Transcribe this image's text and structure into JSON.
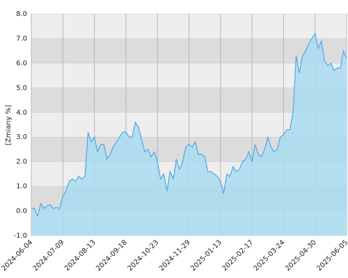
{
  "chart_data": {
    "type": "area",
    "y_label": "[Zmiany %]",
    "categories": [
      "2024-06-04",
      null,
      null,
      null,
      null,
      null,
      null,
      null,
      null,
      null,
      "2024-07-09",
      null,
      null,
      null,
      null,
      null,
      null,
      null,
      null,
      null,
      "2024-08-13",
      null,
      null,
      null,
      null,
      null,
      null,
      null,
      null,
      null,
      "2024-09-18",
      null,
      null,
      null,
      null,
      null,
      null,
      null,
      null,
      null,
      "2024-10-23",
      null,
      null,
      null,
      null,
      null,
      null,
      null,
      null,
      null,
      "2024-11-29",
      null,
      null,
      null,
      null,
      null,
      null,
      null,
      null,
      null,
      "2025-01-13",
      null,
      null,
      null,
      null,
      null,
      null,
      null,
      null,
      null,
      "2025-02-17",
      null,
      null,
      null,
      null,
      null,
      null,
      null,
      null,
      null,
      "2025-03-24",
      null,
      null,
      null,
      null,
      null,
      null,
      null,
      null,
      null,
      "2025-04-30",
      null,
      null,
      null,
      null,
      null,
      null,
      null,
      null,
      null,
      "2025-06-05"
    ],
    "values": [
      0.1,
      0.1,
      -0.2,
      0.3,
      0.1,
      0.2,
      0.25,
      0.1,
      0.15,
      0.1,
      0.6,
      0.8,
      1.2,
      1.3,
      1.2,
      1.4,
      1.3,
      1.4,
      3.2,
      2.8,
      3.0,
      2.4,
      2.7,
      2.7,
      2.1,
      2.3,
      2.6,
      2.8,
      3.0,
      3.2,
      3.2,
      3.0,
      3.0,
      3.6,
      3.4,
      2.9,
      2.4,
      2.5,
      2.2,
      2.4,
      2.0,
      1.3,
      1.5,
      0.8,
      1.6,
      1.3,
      2.1,
      1.7,
      2.0,
      2.6,
      2.7,
      2.6,
      2.8,
      2.3,
      2.3,
      2.2,
      1.6,
      1.6,
      1.5,
      1.4,
      1.2,
      0.7,
      1.5,
      1.4,
      1.8,
      1.6,
      1.7,
      2.0,
      2.1,
      2.4,
      2.0,
      2.7,
      2.3,
      2.2,
      2.5,
      3.0,
      2.6,
      2.4,
      2.5,
      3.0,
      3.1,
      3.3,
      3.3,
      4.0,
      6.3,
      5.6,
      6.3,
      6.5,
      6.8,
      7.0,
      7.2,
      6.6,
      6.9,
      6.1,
      5.9,
      6.0,
      5.7,
      5.8,
      5.8,
      6.5,
      6.2
    ],
    "color": "#4da6e8",
    "fill_color": "#a9dcf0",
    "ylim": [
      -1,
      8
    ],
    "yticks": [
      {
        "value": -1,
        "label": "-1.0"
      },
      {
        "value": 0,
        "label": "0.0"
      },
      {
        "value": 1,
        "label": "1.0"
      },
      {
        "value": 2,
        "label": "2.0"
      },
      {
        "value": 3,
        "label": "3.0"
      },
      {
        "value": 4,
        "label": "4.0"
      },
      {
        "value": 5,
        "label": "5.0"
      },
      {
        "value": 6,
        "label": "6.0"
      },
      {
        "value": 7,
        "label": "7.0"
      },
      {
        "value": 8,
        "label": "8.0"
      }
    ],
    "grid": true
  }
}
